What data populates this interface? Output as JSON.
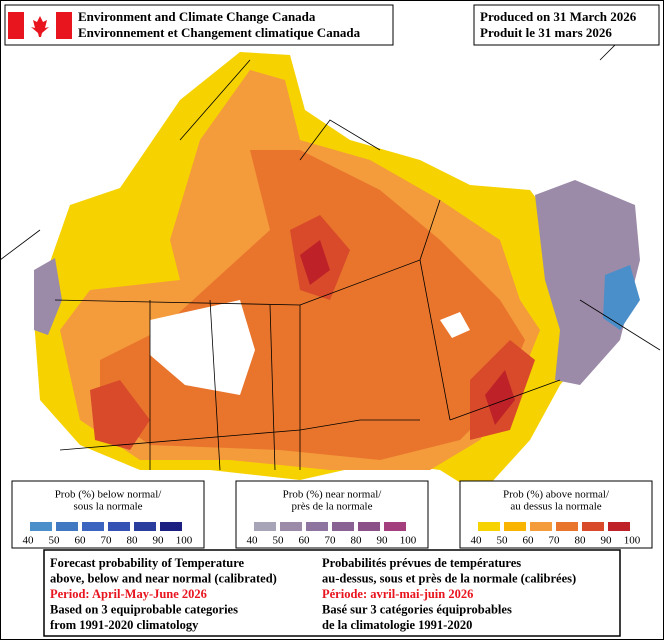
{
  "header": {
    "agency_en": "Environment and Climate Change Canada",
    "agency_fr": "Environnement et Changement climatique Canada",
    "produced_en": "Produced on 31 March 2026",
    "produced_fr": "Produit le 31 mars 2026"
  },
  "legends": [
    {
      "title_en": "Prob (%) below normal/",
      "title_fr": "sous la normale",
      "colors": [
        "#4a8fc9",
        "#4078c2",
        "#3a64c0",
        "#3452b4",
        "#2a3d9c",
        "#1b2080"
      ],
      "labels": [
        40,
        50,
        60,
        70,
        80,
        90,
        100
      ]
    },
    {
      "title_en": "Prob (%) near normal/",
      "title_fr": "près de la normale",
      "colors": [
        "#a8a4b8",
        "#9b8ba8",
        "#8e759f",
        "#876292",
        "#8c5088",
        "#a23f7c"
      ],
      "labels": [
        40,
        50,
        60,
        70,
        80,
        90,
        100
      ]
    },
    {
      "title_en": "Prob (%) above normal/",
      "title_fr": "au dessus la normale",
      "colors": [
        "#f6d200",
        "#f9b400",
        "#f49b3c",
        "#e9752c",
        "#d84a2a",
        "#be2228"
      ],
      "labels": [
        40,
        50,
        60,
        70,
        80,
        90,
        100
      ]
    }
  ],
  "footer": {
    "en": [
      "Forecast probability of Temperature",
      "above, below and near normal (calibrated)",
      "Period: April-May-June 2026",
      "Based on 3 equiprobable categories",
      " from 1991-2020 climatology"
    ],
    "fr": [
      "Probabilités prévues de températures",
      "au-dessus, sous et près de la normale (calibrées)",
      "Période: avril-mai-juin 2026",
      "Basé sur 3 catégories équiprobables",
      "de la climatologie 1991-2020"
    ]
  }
}
